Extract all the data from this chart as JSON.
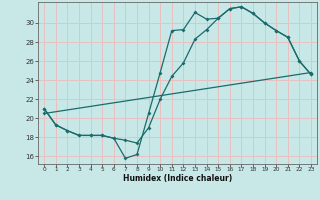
{
  "xlabel": "Humidex (Indice chaleur)",
  "bg_color": "#c8e8e8",
  "grid_color": "#e8c0c0",
  "line_color": "#1a6b6b",
  "xlim": [
    -0.5,
    23.5
  ],
  "ylim": [
    15.2,
    32.2
  ],
  "xtick_vals": [
    0,
    1,
    2,
    3,
    4,
    5,
    6,
    7,
    8,
    9,
    10,
    11,
    12,
    13,
    14,
    15,
    16,
    17,
    18,
    19,
    20,
    21,
    22,
    23
  ],
  "ytick_vals": [
    16,
    18,
    20,
    22,
    24,
    26,
    28,
    30
  ],
  "line1_x": [
    0,
    1,
    2,
    3,
    4,
    5,
    6,
    7,
    8,
    9,
    10,
    11,
    12,
    13,
    14,
    15,
    16,
    17,
    18,
    19,
    20,
    21,
    22,
    23
  ],
  "line1_y": [
    21.0,
    19.3,
    18.7,
    18.2,
    18.2,
    18.2,
    17.9,
    15.8,
    16.2,
    20.5,
    24.8,
    29.2,
    29.3,
    31.1,
    30.4,
    30.5,
    31.5,
    31.7,
    31.0,
    30.0,
    29.2,
    28.5,
    26.0,
    24.6
  ],
  "line2_x": [
    0,
    1,
    2,
    3,
    4,
    5,
    6,
    7,
    8,
    9,
    10,
    11,
    12,
    13,
    14,
    15,
    16,
    17,
    18,
    19,
    20,
    21,
    22,
    23
  ],
  "line2_y": [
    21.0,
    19.3,
    18.7,
    18.2,
    18.2,
    18.2,
    17.9,
    17.7,
    17.4,
    19.0,
    22.0,
    24.4,
    25.8,
    28.3,
    29.3,
    30.5,
    31.5,
    31.7,
    31.0,
    30.0,
    29.2,
    28.5,
    26.0,
    24.6
  ],
  "line3_x": [
    0,
    23
  ],
  "line3_y": [
    20.5,
    24.8
  ]
}
